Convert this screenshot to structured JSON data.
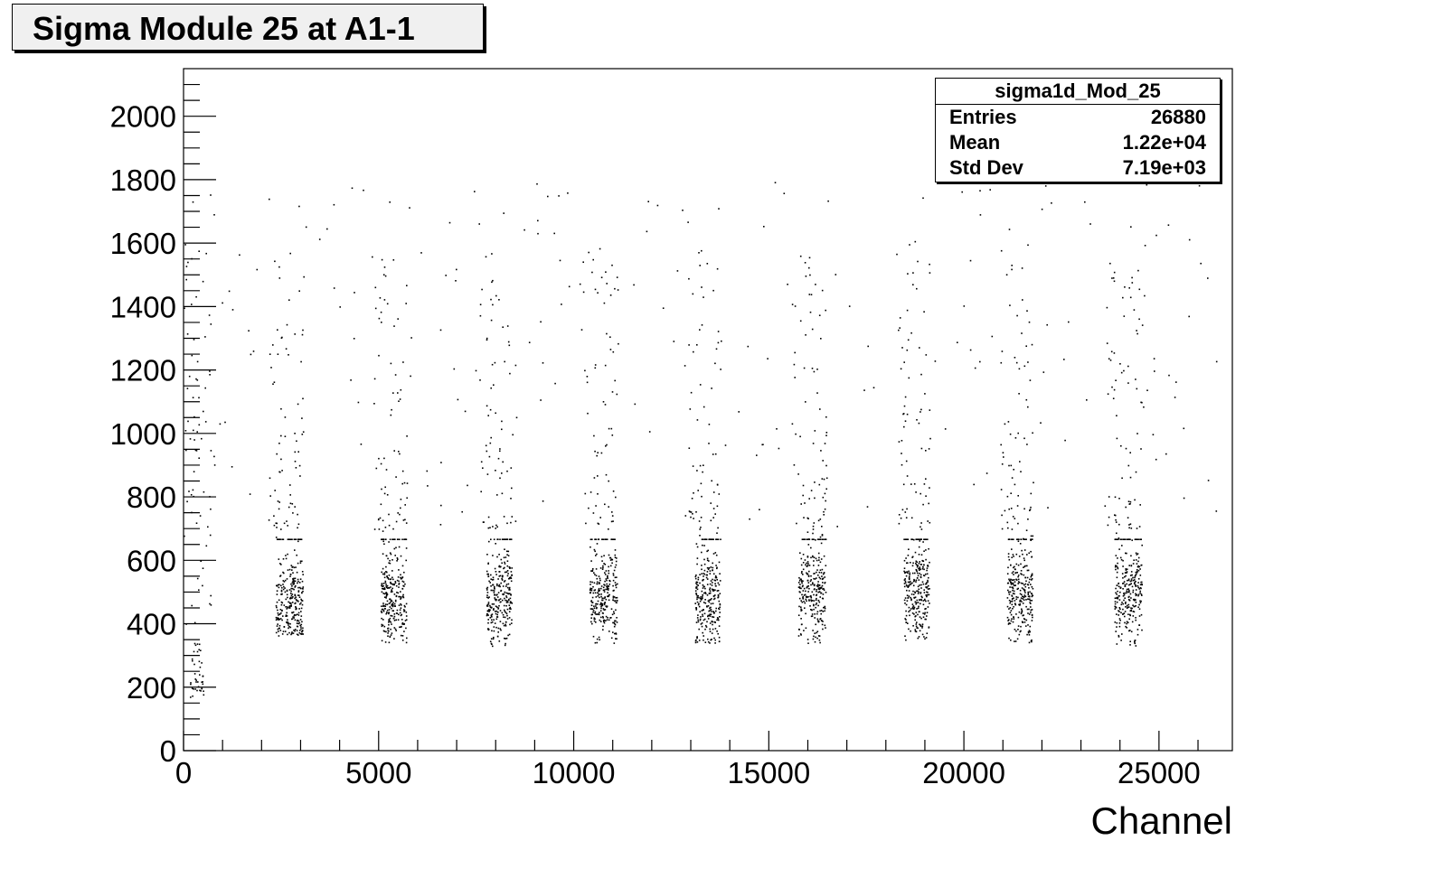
{
  "chart_data": {
    "type": "scatter",
    "title": "Sigma Module 25 at A1-1",
    "xlabel": "Channel",
    "ylabel": "",
    "xlim": [
      0,
      26880
    ],
    "ylim": [
      0,
      2150
    ],
    "x_ticks": [
      0,
      5000,
      10000,
      15000,
      20000,
      25000
    ],
    "y_ticks": [
      0,
      200,
      400,
      600,
      800,
      1000,
      1200,
      1400,
      1600,
      1800,
      2000
    ],
    "grid": false,
    "stats_box": {
      "name": "sigma1d_Mod_25",
      "rows": [
        {
          "label": "Entries",
          "value": "26880"
        },
        {
          "label": "Mean",
          "value": "1.22e+04"
        },
        {
          "label": "Std Dev",
          "value": "7.19e+03"
        }
      ],
      "placement": "top-right"
    },
    "clusters": [
      {
        "x_range": [
          2350,
          3050
        ],
        "y_core": [
          400,
          680
        ],
        "y_mean": 470
      },
      {
        "x_range": [
          5050,
          5700
        ],
        "y_core": [
          380,
          680
        ],
        "y_mean": 480
      },
      {
        "x_range": [
          7750,
          8400
        ],
        "y_core": [
          360,
          680
        ],
        "y_mean": 490
      },
      {
        "x_range": [
          10400,
          11100
        ],
        "y_core": [
          380,
          680
        ],
        "y_mean": 490
      },
      {
        "x_range": [
          13100,
          13750
        ],
        "y_core": [
          380,
          680
        ],
        "y_mean": 480
      },
      {
        "x_range": [
          15750,
          16450
        ],
        "y_core": [
          380,
          680
        ],
        "y_mean": 500
      },
      {
        "x_range": [
          18450,
          19100
        ],
        "y_core": [
          380,
          680
        ],
        "y_mean": 500
      },
      {
        "x_range": [
          21100,
          21750
        ],
        "y_core": [
          380,
          680
        ],
        "y_mean": 500
      },
      {
        "x_range": [
          23850,
          24550
        ],
        "y_core": [
          370,
          680
        ],
        "y_mean": 500
      }
    ],
    "low_region": {
      "x_range": [
        150,
        500
      ],
      "y_core": [
        180,
        330
      ]
    },
    "point_color": "#000000"
  }
}
